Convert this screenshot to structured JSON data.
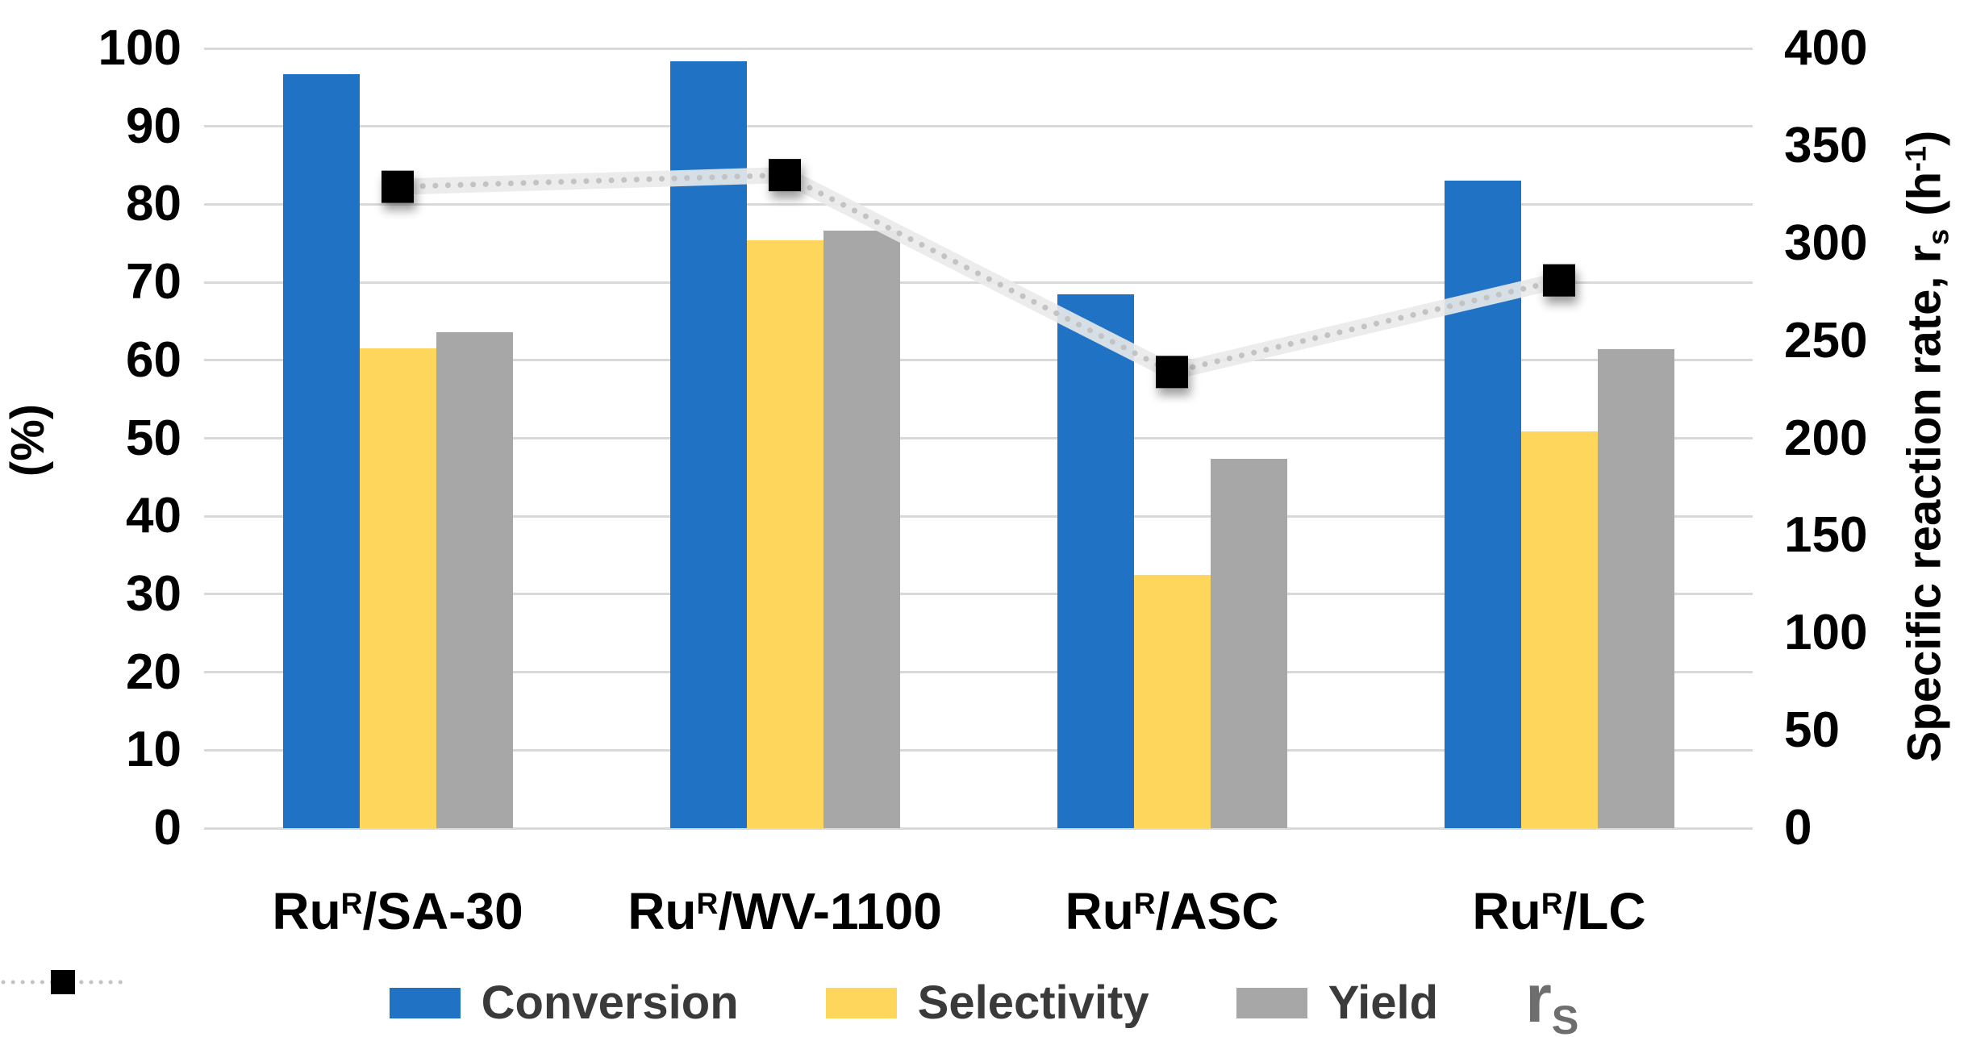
{
  "chart_data": {
    "type": "bar",
    "subtype": "grouped-bars-with-scatter-line-combo",
    "title": "",
    "categories": [
      {
        "pre": "Ru",
        "sup": "R",
        "post": "/SA-30"
      },
      {
        "pre": "Ru",
        "sup": "R",
        "post": "/WV-1100"
      },
      {
        "pre": "Ru",
        "sup": "R",
        "post": "/ASC"
      },
      {
        "pre": "Ru",
        "sup": "R",
        "post": "/LC"
      }
    ],
    "series": [
      {
        "name": "Conversion",
        "type": "bar",
        "axis": "left",
        "color": "#1F72C4",
        "values": [
          96.7,
          98.3,
          68.5,
          83.0
        ]
      },
      {
        "name": "Selectivity",
        "type": "bar",
        "axis": "left",
        "color": "#FDD65B",
        "values": [
          61.5,
          75.4,
          32.5,
          50.9
        ]
      },
      {
        "name": "Yield",
        "type": "bar",
        "axis": "left",
        "color": "#A7A7A7",
        "values": [
          63.6,
          76.6,
          47.4,
          61.4
        ]
      },
      {
        "name": "rS",
        "legend_label": {
          "pre": "r",
          "sub": "S"
        },
        "type": "line-scatter",
        "axis": "right",
        "line_color": "#C3C3C3",
        "line_style": "dotted",
        "marker": "black-square",
        "marker_color": "#000000",
        "values": [
          329,
          335,
          234,
          281
        ]
      }
    ],
    "left_axis": {
      "label": "(%)",
      "min": 0,
      "max": 100,
      "tick_step": 10,
      "ticks": [
        0,
        10,
        20,
        30,
        40,
        50,
        60,
        70,
        80,
        90,
        100
      ]
    },
    "right_axis": {
      "label_parts": {
        "pre": "Specific reaction rate, r",
        "sub": "s",
        "mid": " (h",
        "sup": "-1",
        "post": ")"
      },
      "min": 0,
      "max": 400,
      "tick_step": 50,
      "ticks": [
        0,
        50,
        100,
        150,
        200,
        250,
        300,
        350,
        400
      ]
    },
    "grid": true,
    "gridline_color": "#D9D9D9",
    "legend_position": "bottom"
  }
}
